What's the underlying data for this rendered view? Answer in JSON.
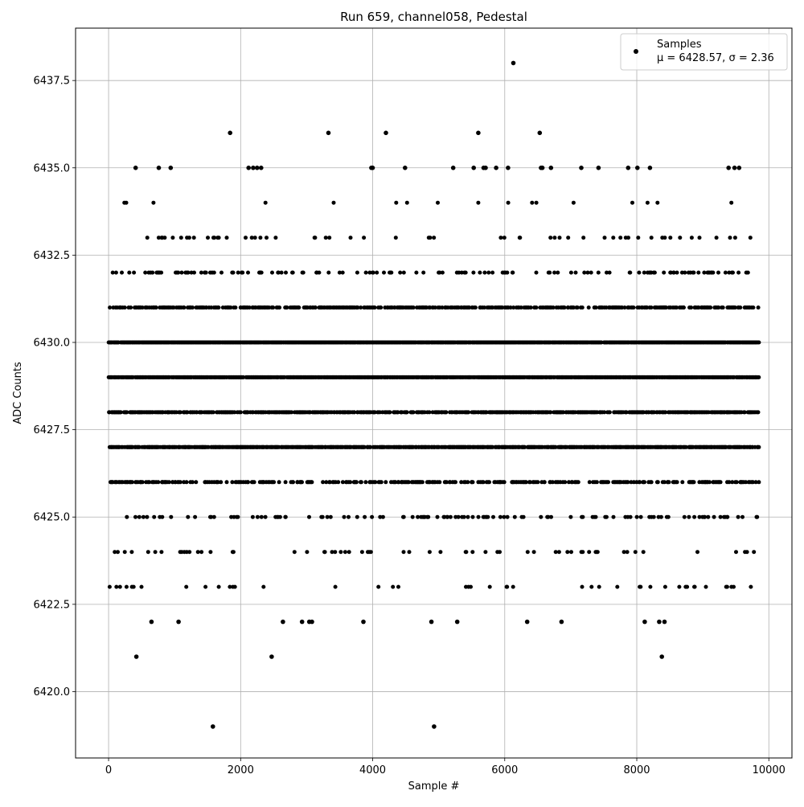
{
  "chart_data": {
    "type": "scatter",
    "title": "Run 659, channel058, Pedestal",
    "xlabel": "Sample #",
    "ylabel": "ADC Counts",
    "xlim": [
      -500,
      10350
    ],
    "ylim": [
      6418.1,
      6439.0
    ],
    "xticks": [
      0,
      2000,
      4000,
      6000,
      8000,
      10000
    ],
    "xtick_labels": [
      "0",
      "2000",
      "4000",
      "6000",
      "8000",
      "10000"
    ],
    "yticks": [
      6420.0,
      6422.5,
      6425.0,
      6427.5,
      6430.0,
      6432.5,
      6435.0,
      6437.5
    ],
    "ytick_labels": [
      "6420.0",
      "6422.5",
      "6425.0",
      "6427.5",
      "6430.0",
      "6432.5",
      "6435.0",
      "6437.5"
    ],
    "grid": true,
    "legend_position": "top-right",
    "marker_color": "#000000",
    "series": [
      {
        "name": "Samples",
        "stats_label": "μ = 6428.57, σ = 2.36",
        "outliers": [
          {
            "x": 6130,
            "y": 6438
          },
          {
            "x": 1840,
            "y": 6436
          },
          {
            "x": 3330,
            "y": 6436
          },
          {
            "x": 4200,
            "y": 6436
          },
          {
            "x": 5600,
            "y": 6436
          },
          {
            "x": 6530,
            "y": 6436
          },
          {
            "x": 410,
            "y": 6435
          },
          {
            "x": 760,
            "y": 6435
          },
          {
            "x": 940,
            "y": 6435
          },
          {
            "x": 2120,
            "y": 6435
          },
          {
            "x": 2190,
            "y": 6435
          },
          {
            "x": 2250,
            "y": 6435
          },
          {
            "x": 2310,
            "y": 6435
          },
          {
            "x": 3980,
            "y": 6435
          },
          {
            "x": 4000,
            "y": 6435
          },
          {
            "x": 4490,
            "y": 6435
          },
          {
            "x": 5220,
            "y": 6435
          },
          {
            "x": 5530,
            "y": 6435
          },
          {
            "x": 5680,
            "y": 6435
          },
          {
            "x": 5710,
            "y": 6435
          },
          {
            "x": 5870,
            "y": 6435
          },
          {
            "x": 6050,
            "y": 6435
          },
          {
            "x": 6550,
            "y": 6435
          },
          {
            "x": 6570,
            "y": 6435
          },
          {
            "x": 6700,
            "y": 6435
          },
          {
            "x": 7160,
            "y": 6435
          },
          {
            "x": 7420,
            "y": 6435
          },
          {
            "x": 7870,
            "y": 6435
          },
          {
            "x": 8010,
            "y": 6435
          },
          {
            "x": 8200,
            "y": 6435
          },
          {
            "x": 9390,
            "y": 6435
          },
          {
            "x": 9480,
            "y": 6435
          },
          {
            "x": 9550,
            "y": 6435
          },
          {
            "x": 650,
            "y": 6422
          },
          {
            "x": 1060,
            "y": 6422
          },
          {
            "x": 2640,
            "y": 6422
          },
          {
            "x": 2930,
            "y": 6422
          },
          {
            "x": 3040,
            "y": 6422
          },
          {
            "x": 3080,
            "y": 6422
          },
          {
            "x": 3860,
            "y": 6422
          },
          {
            "x": 4890,
            "y": 6422
          },
          {
            "x": 5280,
            "y": 6422
          },
          {
            "x": 6340,
            "y": 6422
          },
          {
            "x": 6860,
            "y": 6422
          },
          {
            "x": 8120,
            "y": 6422
          },
          {
            "x": 8340,
            "y": 6422
          },
          {
            "x": 8420,
            "y": 6422
          },
          {
            "x": 420,
            "y": 6421
          },
          {
            "x": 2470,
            "y": 6421
          },
          {
            "x": 8380,
            "y": 6421
          },
          {
            "x": 1580,
            "y": 6419
          },
          {
            "x": 4930,
            "y": 6419
          }
        ],
        "sample_count": 9850,
        "level_densities": [
          {
            "y": 6434,
            "density": 0.012
          },
          {
            "y": 6433,
            "density": 0.05
          },
          {
            "y": 6432,
            "density": 0.16
          },
          {
            "y": 6431,
            "density": 0.45
          },
          {
            "y": 6430,
            "density": 0.9
          },
          {
            "y": 6429,
            "density": 0.9
          },
          {
            "y": 6428,
            "density": 0.6
          },
          {
            "y": 6427,
            "density": 0.7
          },
          {
            "y": 6426,
            "density": 0.3
          },
          {
            "y": 6425,
            "density": 0.14
          },
          {
            "y": 6424,
            "density": 0.045
          },
          {
            "y": 6423,
            "density": 0.04
          }
        ]
      }
    ]
  }
}
